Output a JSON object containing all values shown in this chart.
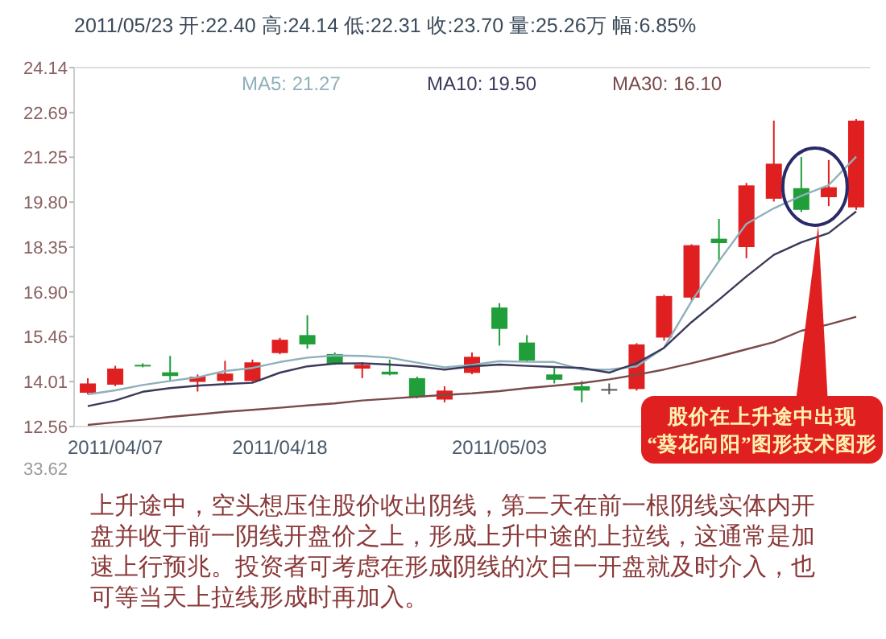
{
  "chart_data": {
    "type": "candlestick",
    "title": "2011/05/23 开:22.40 高:24.14 低:22.31 收:23.70 量:25.26万 幅:6.85%",
    "categories": [
      null,
      "2011/04/07",
      null,
      null,
      null,
      null,
      null,
      "2011/04/18",
      null,
      null,
      null,
      null,
      null,
      null,
      null,
      "2011/05/03",
      null,
      null,
      null,
      null,
      null,
      null,
      null,
      null,
      null,
      null,
      null,
      null,
      null
    ],
    "ohlc": [
      [
        13.65,
        14.12,
        13.6,
        13.95
      ],
      [
        13.91,
        14.52,
        13.86,
        14.43
      ],
      [
        14.55,
        14.6,
        14.47,
        14.5
      ],
      [
        14.31,
        14.84,
        14.03,
        14.19
      ],
      [
        14.0,
        14.24,
        13.69,
        14.17
      ],
      [
        14.03,
        14.68,
        13.95,
        14.27
      ],
      [
        14.03,
        14.72,
        14.0,
        14.63
      ],
      [
        14.93,
        15.42,
        14.89,
        15.36
      ],
      [
        15.51,
        16.15,
        15.07,
        15.21
      ],
      [
        14.9,
        14.95,
        14.55,
        14.59
      ],
      [
        14.43,
        14.64,
        14.12,
        14.55
      ],
      [
        14.33,
        14.72,
        14.21,
        14.24
      ],
      [
        14.12,
        14.17,
        13.47,
        13.51
      ],
      [
        13.43,
        13.86,
        13.34,
        13.72
      ],
      [
        14.29,
        14.95,
        14.25,
        14.81
      ],
      [
        16.4,
        16.54,
        15.17,
        15.71
      ],
      [
        15.27,
        15.51,
        14.64,
        14.69
      ],
      [
        14.24,
        14.47,
        13.95,
        14.07
      ],
      [
        13.86,
        14.03,
        13.34,
        13.72
      ],
      [
        13.77,
        13.95,
        13.6,
        13.77
      ],
      [
        13.77,
        15.25,
        13.72,
        15.21
      ],
      [
        15.43,
        16.81,
        15.33,
        16.77
      ],
      [
        16.72,
        18.44,
        16.63,
        18.41
      ],
      [
        18.62,
        19.26,
        17.88,
        18.48
      ],
      [
        18.35,
        20.42,
        17.99,
        20.34
      ],
      [
        19.91,
        22.43,
        19.82,
        21.04
      ],
      [
        20.25,
        21.26,
        19.48,
        19.55
      ],
      [
        19.96,
        21.16,
        19.67,
        20.28
      ],
      [
        19.63,
        22.48,
        19.55,
        22.43
      ]
    ],
    "colors": [
      "#e02020",
      "#e02020",
      "#1f9e3a",
      "#1f9e3a",
      "#e02020",
      "#e02020",
      "#e02020",
      "#e02020",
      "#1f9e3a",
      "#1f9e3a",
      "#e02020",
      "#1f9e3a",
      "#1f9e3a",
      "#e02020",
      "#e02020",
      "#1f9e3a",
      "#1f9e3a",
      "#1f9e3a",
      "#1f9e3a",
      "#555555",
      "#e02020",
      "#e02020",
      "#e02020",
      "#1f9e3a",
      "#e02020",
      "#e02020",
      "#1f9e3a",
      "#e02020",
      "#e02020"
    ],
    "series": [
      {
        "type": "line",
        "name": "MA5: 21.27",
        "color": "#8fb0bb",
        "values": [
          13.6,
          13.73,
          13.9,
          14.03,
          14.15,
          14.35,
          14.45,
          14.64,
          14.78,
          14.85,
          14.84,
          14.78,
          14.62,
          14.47,
          14.55,
          14.67,
          14.65,
          14.64,
          14.4,
          14.4,
          14.5,
          15.1,
          16.6,
          17.9,
          19.1,
          19.6,
          20.0,
          20.35,
          21.27
        ]
      },
      {
        "type": "line",
        "name": "MA10: 19.50",
        "color": "#3a3a5a",
        "values": [
          13.22,
          13.4,
          13.68,
          13.8,
          13.88,
          13.93,
          13.97,
          14.3,
          14.5,
          14.59,
          14.6,
          14.56,
          14.5,
          14.4,
          14.5,
          14.56,
          14.52,
          14.48,
          14.45,
          14.3,
          14.6,
          15.1,
          15.93,
          16.65,
          17.4,
          18.1,
          18.5,
          18.8,
          19.5
        ]
      },
      {
        "type": "line",
        "name": "MA30: 16.10",
        "color": "#7a4a4a",
        "values": [
          12.61,
          12.7,
          12.78,
          12.87,
          12.95,
          13.03,
          13.1,
          13.17,
          13.24,
          13.31,
          13.4,
          13.46,
          13.52,
          13.58,
          13.63,
          13.7,
          13.8,
          13.88,
          13.96,
          14.08,
          14.23,
          14.4,
          14.6,
          14.82,
          15.05,
          15.28,
          15.65,
          15.85,
          16.1
        ]
      }
    ],
    "ylim": [
      12.56,
      24.14
    ],
    "yticks": [
      12.56,
      14.01,
      15.46,
      {
        "value": 16.9,
        "label": "16.90"
      },
      18.35,
      {
        "value": 19.8,
        "label": "19.80"
      },
      21.25,
      22.69,
      24.14
    ],
    "legend": "top",
    "annotations": [
      "股价在上升途中出现\n“葵花向阳”图形技术图形",
      "上升途中，空头想压住股价收出阴线，第二天在前一根阴线实体内开盘并收于前一阴线开盘价之上，形成上升中途的上拉线，这通常是加速上行预兆。投资者可考虑在形成阴线的次日一开盘就及时介入，也可等当天上拉线形成时再加入。",
      "33.62"
    ]
  }
}
